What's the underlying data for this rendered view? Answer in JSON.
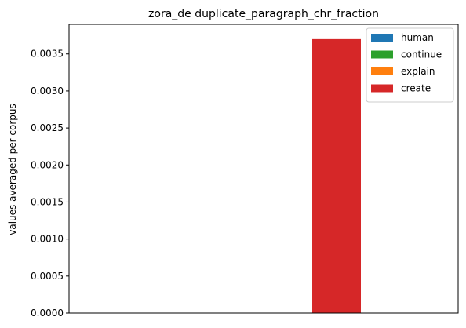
{
  "chart_data": {
    "type": "bar",
    "title": "zora_de duplicate_paragraph_chr_fraction",
    "xlabel": "",
    "ylabel": "values averaged per corpus",
    "ylim": [
      0,
      0.0039
    ],
    "yticks": [
      "0.0000",
      "0.0005",
      "0.0010",
      "0.0015",
      "0.0020",
      "0.0025",
      "0.0030",
      "0.0035"
    ],
    "ytick_values": [
      0,
      0.0005,
      0.001,
      0.0015,
      0.002,
      0.0025,
      0.003,
      0.0035
    ],
    "grid": false,
    "legend_position": "top-right",
    "series": [
      {
        "name": "human",
        "color": "#1f77b4",
        "value": 0
      },
      {
        "name": "continue",
        "color": "#2ca02c",
        "value": 0
      },
      {
        "name": "explain",
        "color": "#ff7f0e",
        "value": 0
      },
      {
        "name": "create",
        "color": "#d62728",
        "value": 0.0037
      }
    ]
  }
}
